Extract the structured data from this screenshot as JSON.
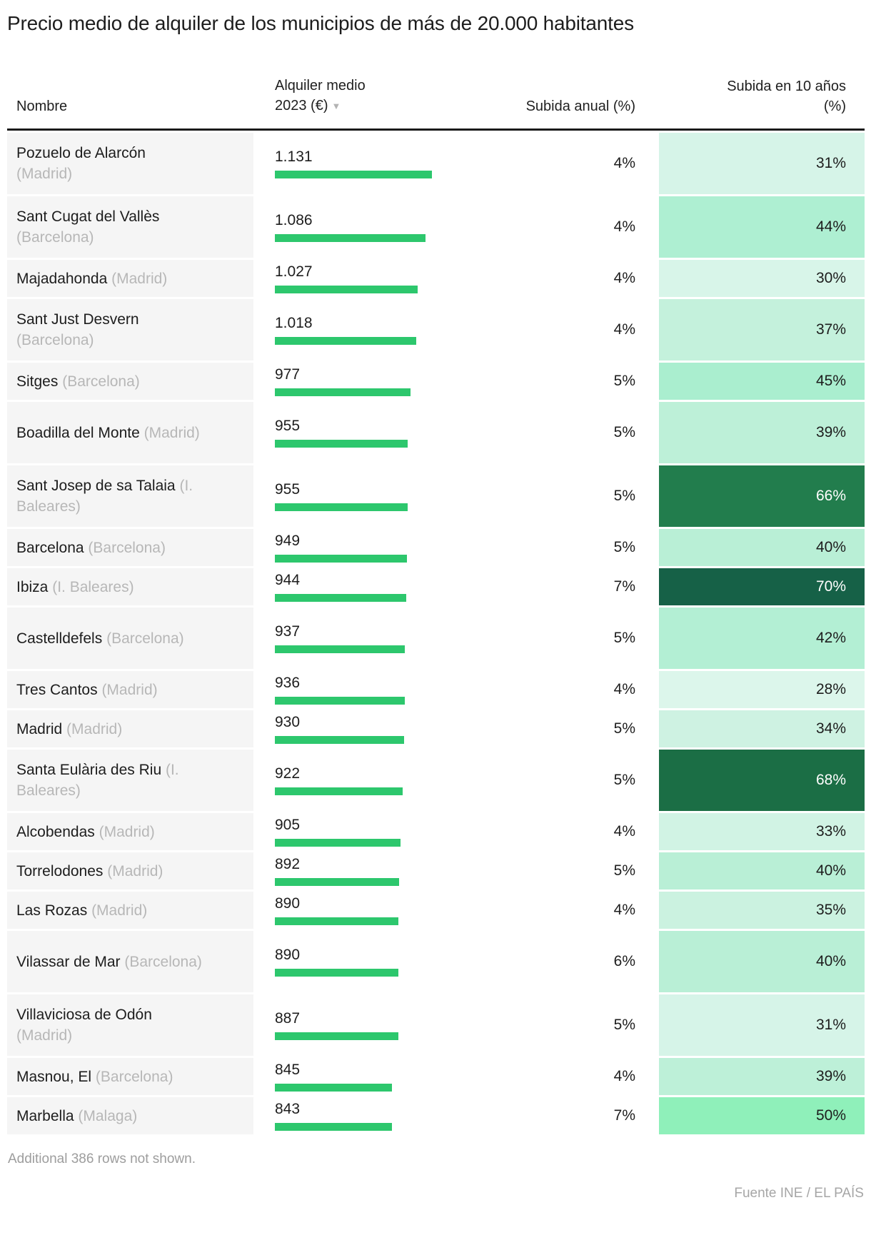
{
  "title": "Precio medio de alquiler de los municipios de más de 20.000 habitantes",
  "header": {
    "name": "Nombre",
    "value_line1": "Alquiler medio",
    "value_line2": "2023 (€)",
    "sort_icon": "▼",
    "annual": "Subida anual (%)",
    "decade_line1": "Subida en 10 años",
    "decade_line2": "(%)"
  },
  "note": "Additional 386 rows not shown.",
  "source": "Fuente INE / EL PAÍS",
  "colors": {
    "bar": "#2dc76d",
    "name_cell_bg": "#f5f5f5",
    "dark_text": "#1d1d1d",
    "white_text": "#ffffff",
    "region_text": "#b7b7b7",
    "header_rule": "#1a1a1a"
  },
  "chart_data": {
    "type": "table",
    "title": "Precio medio de alquiler de los municipios de más de 20.000 habitantes",
    "columns": [
      "Nombre",
      "Alquiler medio 2023 (€)",
      "Subida anual (%)",
      "Subida en 10 años (%)"
    ],
    "sorted_by": "Alquiler medio 2023 (€), descending",
    "bar_column": "Alquiler medio 2023 (€)",
    "heatmap_column": "Subida en 10 años (%)",
    "rows": [
      {
        "name": "Pozuelo de Alarcón",
        "region": "(Madrid)",
        "lines": 2,
        "rent": 1131,
        "rent_label": "1.131",
        "annual": "4%",
        "decade": "31%",
        "decade_value": 31,
        "decade_bg": "#d6f4e8",
        "decade_text": "#1d1d1d"
      },
      {
        "name": "Sant Cugat del Vallès",
        "region": "(Barcelona)",
        "lines": 2,
        "rent": 1086,
        "rent_label": "1.086",
        "annual": "4%",
        "decade": "44%",
        "decade_value": 44,
        "decade_bg": "#aeefd2",
        "decade_text": "#1d1d1d"
      },
      {
        "name": "Majadahonda",
        "region": "(Madrid)",
        "lines": 1,
        "rent": 1027,
        "rent_label": "1.027",
        "annual": "4%",
        "decade": "30%",
        "decade_value": 30,
        "decade_bg": "#d8f5e9",
        "decade_text": "#1d1d1d"
      },
      {
        "name": "Sant Just Desvern",
        "region": "(Barcelona)",
        "lines": 2,
        "rent": 1018,
        "rent_label": "1.018",
        "annual": "4%",
        "decade": "37%",
        "decade_value": 37,
        "decade_bg": "#c4f1dc",
        "decade_text": "#1d1d1d"
      },
      {
        "name": "Sitges",
        "region": "(Barcelona)",
        "lines": 1,
        "rent": 977,
        "rent_label": "977",
        "annual": "5%",
        "decade": "45%",
        "decade_value": 45,
        "decade_bg": "#aaeecf",
        "decade_text": "#1d1d1d"
      },
      {
        "name": "Boadilla del Monte",
        "region": "(Madrid)",
        "lines": 2,
        "rent": 955,
        "rent_label": "955",
        "annual": "5%",
        "decade": "39%",
        "decade_value": 39,
        "decade_bg": "#bdf0d8",
        "decade_text": "#1d1d1d"
      },
      {
        "name": "Sant Josep de sa Talaia",
        "region": "(I. Baleares)",
        "lines": 2,
        "rent": 955,
        "rent_label": "955",
        "annual": "5%",
        "decade": "66%",
        "decade_value": 66,
        "decade_bg": "#227d4d",
        "decade_text": "#ffffff"
      },
      {
        "name": "Barcelona",
        "region": "(Barcelona)",
        "lines": 1,
        "rent": 949,
        "rent_label": "949",
        "annual": "5%",
        "decade": "40%",
        "decade_value": 40,
        "decade_bg": "#b9efd6",
        "decade_text": "#1d1d1d"
      },
      {
        "name": "Ibiza",
        "region": "(I. Baleares)",
        "lines": 1,
        "rent": 944,
        "rent_label": "944",
        "annual": "7%",
        "decade": "70%",
        "decade_value": 70,
        "decade_bg": "#166147",
        "decade_text": "#ffffff"
      },
      {
        "name": "Castelldefels",
        "region": "(Barcelona)",
        "lines": 2,
        "rent": 937,
        "rent_label": "937",
        "annual": "5%",
        "decade": "42%",
        "decade_value": 42,
        "decade_bg": "#b3efd4",
        "decade_text": "#1d1d1d"
      },
      {
        "name": "Tres Cantos",
        "region": "(Madrid)",
        "lines": 1,
        "rent": 936,
        "rent_label": "936",
        "annual": "4%",
        "decade": "28%",
        "decade_value": 28,
        "decade_bg": "#dcf6eb",
        "decade_text": "#1d1d1d"
      },
      {
        "name": "Madrid",
        "region": "(Madrid)",
        "lines": 1,
        "rent": 930,
        "rent_label": "930",
        "annual": "5%",
        "decade": "34%",
        "decade_value": 34,
        "decade_bg": "#cef2e2",
        "decade_text": "#1d1d1d"
      },
      {
        "name": "Santa Eulària des Riu",
        "region": "(I. Baleares)",
        "lines": 2,
        "rent": 922,
        "rent_label": "922",
        "annual": "5%",
        "decade": "68%",
        "decade_value": 68,
        "decade_bg": "#1b6e45",
        "decade_text": "#ffffff"
      },
      {
        "name": "Alcobendas",
        "region": "(Madrid)",
        "lines": 1,
        "rent": 905,
        "rent_label": "905",
        "annual": "4%",
        "decade": "33%",
        "decade_value": 33,
        "decade_bg": "#d1f3e4",
        "decade_text": "#1d1d1d"
      },
      {
        "name": "Torrelodones",
        "region": "(Madrid)",
        "lines": 1,
        "rent": 892,
        "rent_label": "892",
        "annual": "5%",
        "decade": "40%",
        "decade_value": 40,
        "decade_bg": "#b9efd6",
        "decade_text": "#1d1d1d"
      },
      {
        "name": "Las Rozas",
        "region": "(Madrid)",
        "lines": 1,
        "rent": 890,
        "rent_label": "890",
        "annual": "4%",
        "decade": "35%",
        "decade_value": 35,
        "decade_bg": "#cbf2e0",
        "decade_text": "#1d1d1d"
      },
      {
        "name": "Vilassar de Mar",
        "region": "(Barcelona)",
        "lines": 2,
        "rent": 890,
        "rent_label": "890",
        "annual": "6%",
        "decade": "40%",
        "decade_value": 40,
        "decade_bg": "#b9efd6",
        "decade_text": "#1d1d1d"
      },
      {
        "name": "Villaviciosa de Odón",
        "region": "(Madrid)",
        "lines": 2,
        "rent": 887,
        "rent_label": "887",
        "annual": "5%",
        "decade": "31%",
        "decade_value": 31,
        "decade_bg": "#d6f4e8",
        "decade_text": "#1d1d1d"
      },
      {
        "name": "Masnou, El",
        "region": "(Barcelona)",
        "lines": 1,
        "rent": 845,
        "rent_label": "845",
        "annual": "4%",
        "decade": "39%",
        "decade_value": 39,
        "decade_bg": "#bdf0d8",
        "decade_text": "#1d1d1d"
      },
      {
        "name": "Marbella",
        "region": "(Malaga)",
        "lines": 1,
        "rent": 843,
        "rent_label": "843",
        "annual": "7%",
        "decade": "50%",
        "decade_value": 50,
        "decade_bg": "#8ff0ba",
        "decade_text": "#1d1d1d"
      }
    ]
  }
}
